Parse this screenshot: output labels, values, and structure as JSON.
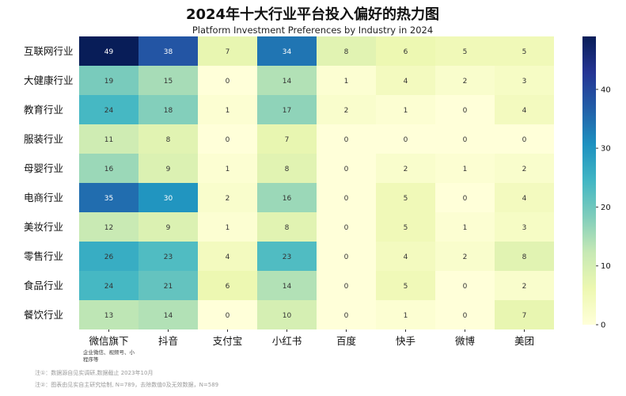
{
  "chart_data": {
    "type": "heatmap",
    "title": "2024年十大行业平台投入偏好的热力图",
    "subtitle": "Platform Investment Preferences by Industry in 2024",
    "x_categories": [
      "微信旗下",
      "抖音",
      "支付宝",
      "小红书",
      "百度",
      "快手",
      "微博",
      "美团"
    ],
    "x_sublabel": "企业微信、视频号、小程序等",
    "y_categories": [
      "互联网行业",
      "大健康行业",
      "教育行业",
      "服装行业",
      "母婴行业",
      "电商行业",
      "美妆行业",
      "零售行业",
      "食品行业",
      "餐饮行业"
    ],
    "values": [
      [
        49,
        38,
        7,
        34,
        8,
        6,
        5,
        5
      ],
      [
        19,
        15,
        0,
        14,
        1,
        4,
        2,
        3
      ],
      [
        24,
        18,
        1,
        17,
        2,
        1,
        0,
        4
      ],
      [
        11,
        8,
        0,
        7,
        0,
        0,
        0,
        0
      ],
      [
        16,
        9,
        1,
        8,
        0,
        2,
        1,
        2
      ],
      [
        35,
        30,
        2,
        16,
        0,
        5,
        0,
        4
      ],
      [
        12,
        9,
        1,
        8,
        0,
        5,
        1,
        3
      ],
      [
        26,
        23,
        4,
        23,
        0,
        4,
        2,
        8
      ],
      [
        24,
        21,
        6,
        14,
        0,
        5,
        0,
        2
      ],
      [
        13,
        14,
        0,
        10,
        0,
        1,
        0,
        7
      ]
    ],
    "colorbar": {
      "range": [
        0,
        49
      ],
      "ticks": [
        0,
        10,
        20,
        30,
        40
      ]
    },
    "colormap": [
      "#ffffd9",
      "#edf8b1",
      "#c7e9b4",
      "#7fcdbb",
      "#41b6c4",
      "#1d91c0",
      "#225ea8",
      "#253494",
      "#081d58"
    ],
    "grid": false
  },
  "notes": [
    "注①：数据源自见实调研,数据截止 2023年10月",
    "注②：图表由见实自主研究绘制, N=789，去除数值0及无效数据，N=589"
  ]
}
